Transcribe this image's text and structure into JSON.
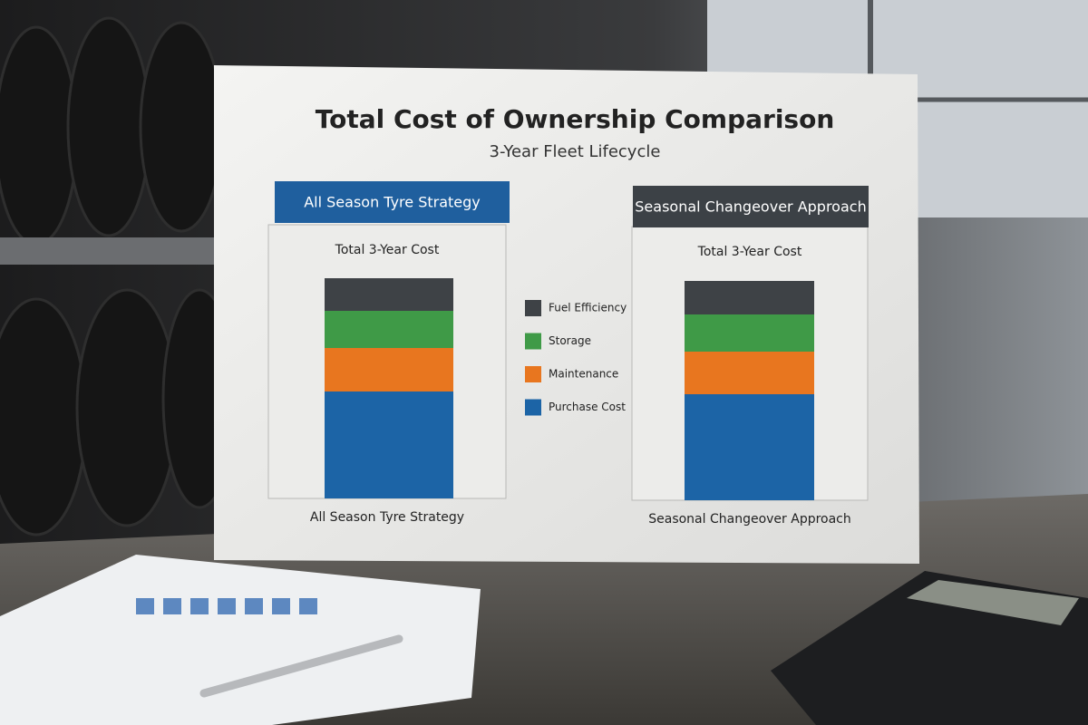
{
  "chart_data": {
    "type": "stacked_bar",
    "title": "Total Cost of Ownership Comparison",
    "subtitle": "3-Year Fleet Lifecycle",
    "panel_label": "Total 3-Year Cost",
    "categories": [
      "All Season Tyre Strategy",
      "Seasonal Changeover Approach"
    ],
    "header_colors": [
      "#1f5f9e",
      "#3c4146"
    ],
    "series": [
      {
        "name": "Purchase Cost",
        "color": "#1c64a6",
        "values": [
          118,
          117
        ]
      },
      {
        "name": "Maintenance",
        "color": "#e8761f",
        "values": [
          48,
          47
        ]
      },
      {
        "name": "Storage",
        "color": "#3f9a47",
        "values": [
          41,
          41
        ]
      },
      {
        "name": "Fuel Efficiency",
        "color": "#3e4246",
        "values": [
          36,
          37
        ]
      }
    ]
  }
}
